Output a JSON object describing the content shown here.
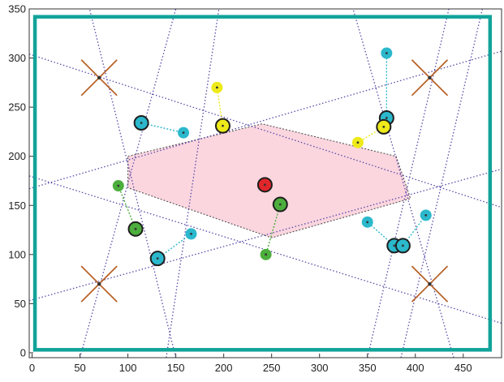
{
  "chart_data": {
    "type": "scatter",
    "title": "",
    "xlabel": "",
    "ylabel": "",
    "xlim": [
      -3,
      490
    ],
    "ylim": [
      -5,
      350
    ],
    "x_ticks": [
      0,
      50,
      100,
      150,
      200,
      250,
      300,
      350,
      400,
      450
    ],
    "y_ticks": [
      0,
      50,
      100,
      150,
      200,
      250,
      300,
      350
    ],
    "x_tick_labels": [
      "0",
      "50",
      "100",
      "150",
      "200",
      "250",
      "300",
      "350",
      "400",
      "450"
    ],
    "y_tick_labels": [
      "0",
      "50",
      "100",
      "150",
      "200",
      "250",
      "300",
      "350"
    ],
    "grid": false,
    "colors": {
      "boundary": "#12a39a",
      "region_fill": "#fbd6df",
      "lines": "#5a4aa8",
      "crosses": "#b8642a",
      "cyan": "#2bb8cc",
      "green": "#4cae3c",
      "yellow": "#eeea1a",
      "red": "#e0262a"
    },
    "boundary_rect": [
      [
        3,
        3
      ],
      [
        478,
        342
      ]
    ],
    "region_polygon": [
      [
        100,
        200
      ],
      [
        240,
        233
      ],
      [
        380,
        200
      ],
      [
        395,
        157
      ],
      [
        250,
        117
      ],
      [
        100,
        168
      ]
    ],
    "dotted_lines": [
      {
        "from": [
          50,
          -5
        ],
        "to": [
          150,
          350
        ]
      },
      {
        "from": [
          150,
          -5
        ],
        "to": [
          60,
          350
        ]
      },
      {
        "from": [
          140,
          -5
        ],
        "to": [
          195,
          350
        ]
      },
      {
        "from": [
          440,
          -5
        ],
        "to": [
          335,
          350
        ]
      },
      {
        "from": [
          350,
          -5
        ],
        "to": [
          435,
          350
        ]
      },
      {
        "from": [
          385,
          -5
        ],
        "to": [
          470,
          350
        ]
      },
      {
        "from": [
          -3,
          167
        ],
        "to": [
          490,
          307
        ]
      },
      {
        "from": [
          -3,
          304
        ],
        "to": [
          490,
          148
        ]
      },
      {
        "from": [
          -3,
          180
        ],
        "to": [
          490,
          30
        ]
      },
      {
        "from": [
          -3,
          53
        ],
        "to": [
          490,
          187
        ]
      }
    ],
    "crosses": [
      {
        "center": [
          70,
          280
        ]
      },
      {
        "center": [
          415,
          280
        ]
      },
      {
        "center": [
          70,
          70
        ]
      },
      {
        "center": [
          415,
          70
        ]
      }
    ],
    "agents": [
      {
        "color": "red",
        "x": 243,
        "y": 171,
        "target_x": 243,
        "target_y": 173,
        "outlined": true
      },
      {
        "color": "green",
        "x": 259,
        "y": 151,
        "target_x": 244,
        "target_y": 100,
        "outlined": true
      },
      {
        "color": "green",
        "x": 108,
        "y": 126,
        "target_x": 90,
        "target_y": 170,
        "outlined": true
      },
      {
        "color": "cyan",
        "x": 114,
        "y": 234,
        "target_x": 158,
        "target_y": 224,
        "outlined": true
      },
      {
        "color": "cyan",
        "x": 131,
        "y": 96,
        "target_x": 166,
        "target_y": 121,
        "outlined": true
      },
      {
        "color": "yellow",
        "x": 199,
        "y": 231,
        "target_x": 193,
        "target_y": 270,
        "outlined": true
      },
      {
        "color": "cyan",
        "x": 370,
        "y": 239,
        "target_x": 370,
        "target_y": 305,
        "outlined": true
      },
      {
        "color": "yellow",
        "x": 367,
        "y": 230,
        "target_x": 340,
        "target_y": 214,
        "outlined": true
      },
      {
        "color": "cyan",
        "x": 378,
        "y": 109,
        "target_x": 350,
        "target_y": 133,
        "outlined": true
      },
      {
        "color": "cyan",
        "x": 387,
        "y": 109,
        "target_x": 411,
        "target_y": 140,
        "outlined": true
      }
    ]
  }
}
